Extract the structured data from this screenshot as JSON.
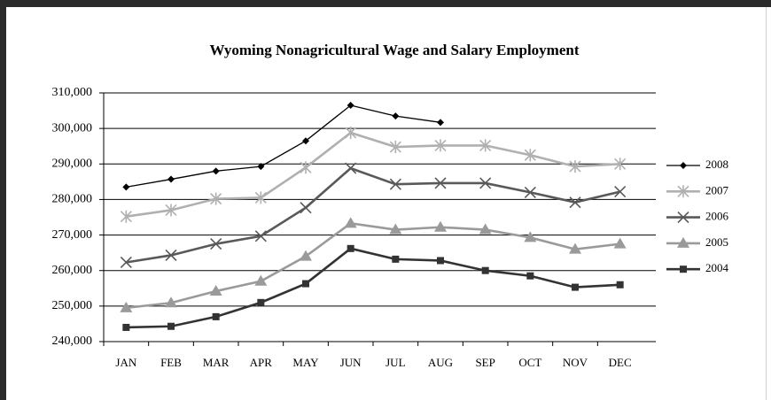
{
  "chart_data": {
    "type": "line",
    "title": "Wyoming Nonagricultural Wage and Salary Employment",
    "categories": [
      "JAN",
      "FEB",
      "MAR",
      "APR",
      "MAY",
      "JUN",
      "JUL",
      "AUG",
      "SEP",
      "OCT",
      "NOV",
      "DEC"
    ],
    "ylim": [
      240000,
      310000
    ],
    "yticks": [
      {
        "value": 240000,
        "label": "240,000"
      },
      {
        "value": 250000,
        "label": "250,000"
      },
      {
        "value": 260000,
        "label": "260,000"
      },
      {
        "value": 270000,
        "label": "270,000"
      },
      {
        "value": 280000,
        "label": "280,000"
      },
      {
        "value": 290000,
        "label": "290,000"
      },
      {
        "value": 300000,
        "label": "300,000"
      },
      {
        "value": 310000,
        "label": "310,000"
      }
    ],
    "grid": true,
    "legend": "right",
    "series": [
      {
        "name": "2008",
        "color": "#000000",
        "marker": "diamond",
        "values": [
          283500,
          285700,
          288000,
          289300,
          296500,
          306500,
          303500,
          301700,
          null,
          null,
          null,
          null
        ]
      },
      {
        "name": "2007",
        "color": "#b0b0b0",
        "marker": "asterisk",
        "values": [
          275200,
          277000,
          280200,
          280500,
          289000,
          298800,
          294800,
          295200,
          295200,
          292500,
          289300,
          290000
        ]
      },
      {
        "name": "2006",
        "color": "#595959",
        "marker": "x",
        "values": [
          262300,
          264300,
          267500,
          269700,
          277700,
          288800,
          284300,
          284600,
          284600,
          282000,
          279200,
          282200
        ]
      },
      {
        "name": "2005",
        "color": "#9a9a9a",
        "marker": "triangle",
        "values": [
          249500,
          250900,
          254200,
          257000,
          264000,
          273300,
          271500,
          272200,
          271500,
          269300,
          266000,
          267500
        ]
      },
      {
        "name": "2004",
        "color": "#333333",
        "marker": "square",
        "values": [
          244000,
          244300,
          247000,
          251000,
          256300,
          266200,
          263200,
          262800,
          260000,
          258500,
          255300,
          256000
        ]
      }
    ]
  }
}
